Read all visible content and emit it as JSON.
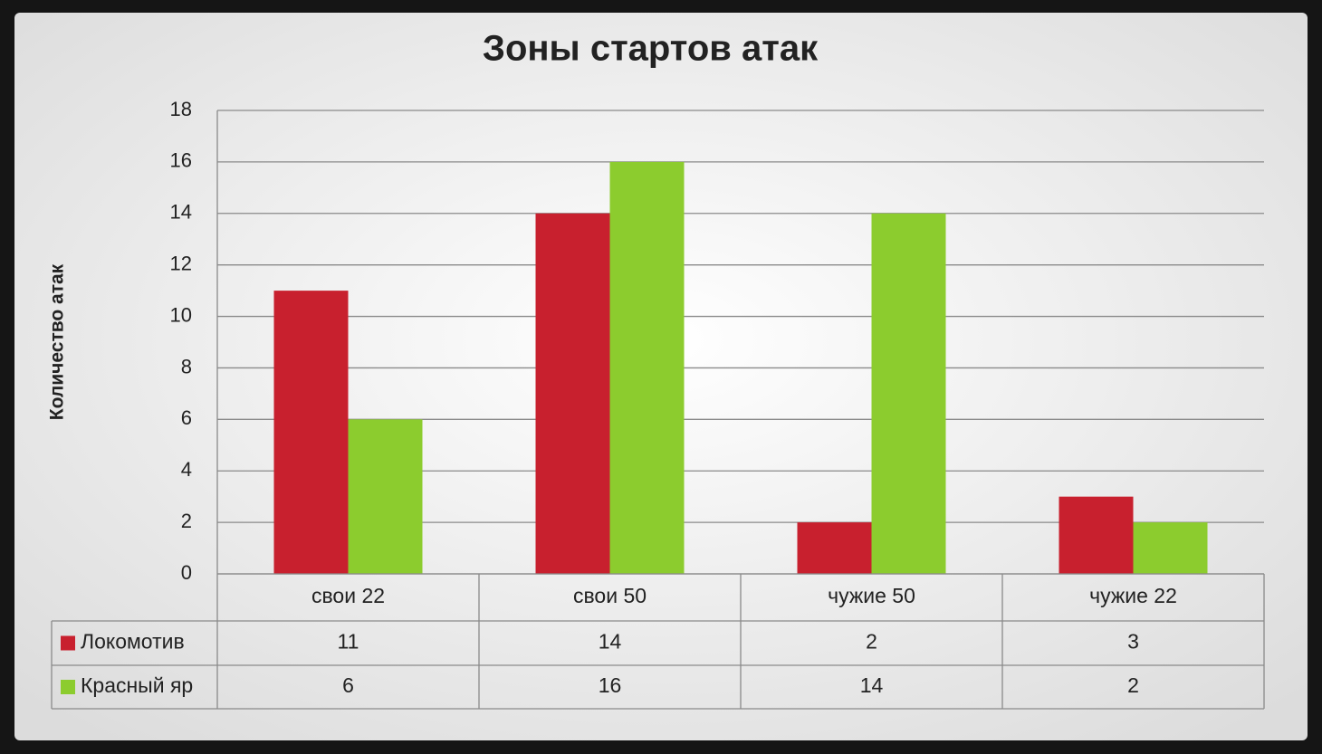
{
  "chart_data": {
    "type": "bar",
    "title": "Зоны стартов атак",
    "y_label": "Количество атак",
    "categories": [
      "свои 22",
      "свои 50",
      "чужие 50",
      "чужие 22"
    ],
    "series": [
      {
        "name": "Локомотив",
        "color": "#c8202e",
        "values": [
          11,
          14,
          2,
          3
        ]
      },
      {
        "name": "Красный яр",
        "color": "#8ccc2e",
        "values": [
          6,
          16,
          14,
          2
        ]
      }
    ],
    "ylim": [
      0,
      18
    ],
    "yticks": [
      0,
      2,
      4,
      6,
      8,
      10,
      12,
      14,
      16,
      18
    ],
    "grid": true,
    "data_table": true
  }
}
